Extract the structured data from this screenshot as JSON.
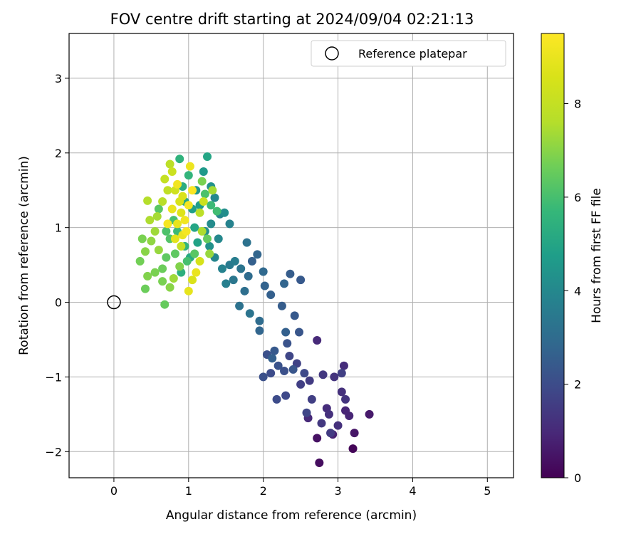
{
  "chart_data": {
    "type": "scatter",
    "title": "FOV centre drift starting at 2024/09/04 02:21:13",
    "xlabel": "Angular distance from reference (arcmin)",
    "ylabel": "Rotation from reference (arcmin)",
    "xlim": [
      -0.6,
      5.35
    ],
    "ylim": [
      -2.35,
      3.6
    ],
    "xticks": [
      "0",
      "1",
      "2",
      "3",
      "4",
      "5"
    ],
    "yticks": [
      "−2",
      "−1",
      "0",
      "1",
      "2",
      "3"
    ],
    "grid": true,
    "legend": {
      "position": "top-right",
      "entries": [
        "Reference platepar"
      ]
    },
    "reference_point": {
      "x": 0,
      "y": 0
    },
    "colorbar": {
      "label": "Hours from first FF file",
      "range": [
        0,
        9.5
      ],
      "ticks": [
        "0",
        "2",
        "4",
        "6",
        "8"
      ],
      "colormap": "viridis"
    },
    "series": [
      {
        "name": "Reference platepar",
        "points": [
          [
            0,
            0
          ]
        ]
      }
    ],
    "points": [
      [
        3.2,
        -1.96,
        0.1
      ],
      [
        2.75,
        -2.15,
        0.3
      ],
      [
        3.22,
        -1.75,
        0.5
      ],
      [
        2.72,
        -1.82,
        0.4
      ],
      [
        3.42,
        -1.5,
        0.6
      ],
      [
        2.93,
        -1.77,
        0.8
      ],
      [
        3.15,
        -1.52,
        0.9
      ],
      [
        2.6,
        -1.55,
        1.0
      ],
      [
        2.85,
        -1.42,
        1.1
      ],
      [
        3.0,
        -1.65,
        1.2
      ],
      [
        3.1,
        -1.3,
        1.3
      ],
      [
        2.78,
        -1.62,
        1.4
      ],
      [
        2.9,
        -1.75,
        1.5
      ],
      [
        3.05,
        -1.2,
        1.2
      ],
      [
        2.72,
        -0.51,
        1.0
      ],
      [
        3.08,
        -0.85,
        1.1
      ],
      [
        2.95,
        -1.0,
        1.3
      ],
      [
        2.8,
        -0.97,
        1.4
      ],
      [
        2.62,
        -1.05,
        1.5
      ],
      [
        2.5,
        -1.1,
        1.6
      ],
      [
        2.45,
        -0.82,
        1.7
      ],
      [
        2.35,
        -0.72,
        1.8
      ],
      [
        2.3,
        -1.25,
        1.9
      ],
      [
        2.18,
        -1.3,
        2.0
      ],
      [
        2.1,
        -0.95,
        2.0
      ],
      [
        2.05,
        -0.7,
        2.1
      ],
      [
        2.2,
        -0.85,
        2.2
      ],
      [
        2.4,
        -0.9,
        2.3
      ],
      [
        2.0,
        -1.0,
        2.1
      ],
      [
        2.15,
        -0.65,
        2.4
      ],
      [
        2.32,
        -0.55,
        2.2
      ],
      [
        2.48,
        -0.4,
        2.3
      ],
      [
        2.42,
        -0.18,
        2.4
      ],
      [
        2.25,
        -0.05,
        2.5
      ],
      [
        2.1,
        0.1,
        2.6
      ],
      [
        2.02,
        0.22,
        2.7
      ],
      [
        2.28,
        0.25,
        2.8
      ],
      [
        2.36,
        0.38,
        2.5
      ],
      [
        2.5,
        0.3,
        2.4
      ],
      [
        1.85,
        0.55,
        2.6
      ],
      [
        1.92,
        0.64,
        2.8
      ],
      [
        2.0,
        0.41,
        2.9
      ],
      [
        1.8,
        0.35,
        3.0
      ],
      [
        1.75,
        0.15,
        3.1
      ],
      [
        1.68,
        -0.05,
        3.2
      ],
      [
        1.82,
        -0.15,
        3.3
      ],
      [
        1.95,
        -0.25,
        3.0
      ],
      [
        1.6,
        0.3,
        3.4
      ],
      [
        1.55,
        0.5,
        3.5
      ],
      [
        1.7,
        0.45,
        3.3
      ],
      [
        1.78,
        0.8,
        3.2
      ],
      [
        1.62,
        0.55,
        3.6
      ],
      [
        1.5,
        0.25,
        3.7
      ],
      [
        1.45,
        0.45,
        3.8
      ],
      [
        1.35,
        0.6,
        3.9
      ],
      [
        1.4,
        0.85,
        4.0
      ],
      [
        1.55,
        1.05,
        3.8
      ],
      [
        1.42,
        1.18,
        3.9
      ],
      [
        1.3,
        1.05,
        4.1
      ],
      [
        1.22,
        0.95,
        4.2
      ],
      [
        1.28,
        0.75,
        4.3
      ],
      [
        1.48,
        1.2,
        4.2
      ],
      [
        1.35,
        1.4,
        4.0
      ],
      [
        1.3,
        1.55,
        4.3
      ],
      [
        1.2,
        1.75,
        4.6
      ],
      [
        1.25,
        1.95,
        5.0
      ],
      [
        1.1,
        1.5,
        4.5
      ],
      [
        1.05,
        1.25,
        4.8
      ],
      [
        1.15,
        1.3,
        4.7
      ],
      [
        0.95,
        1.35,
        5.1
      ],
      [
        0.92,
        1.55,
        5.3
      ],
      [
        0.88,
        1.92,
        5.5
      ],
      [
        1.0,
        1.7,
        5.6
      ],
      [
        1.08,
        1.0,
        5.0
      ],
      [
        1.12,
        0.8,
        4.9
      ],
      [
        1.02,
        0.6,
        5.2
      ],
      [
        0.9,
        0.4,
        5.4
      ],
      [
        0.95,
        0.75,
        5.6
      ],
      [
        0.85,
        0.95,
        5.8
      ],
      [
        0.8,
        1.1,
        6.0
      ],
      [
        0.75,
        0.85,
        6.2
      ],
      [
        0.7,
        0.6,
        6.4
      ],
      [
        0.65,
        0.45,
        6.6
      ],
      [
        0.55,
        0.4,
        6.8
      ],
      [
        0.45,
        0.35,
        6.9
      ],
      [
        0.35,
        0.55,
        6.7
      ],
      [
        0.38,
        0.85,
        6.8
      ],
      [
        0.42,
        0.68,
        7.0
      ],
      [
        0.5,
        0.82,
        7.1
      ],
      [
        0.6,
        0.7,
        7.2
      ],
      [
        0.55,
        0.95,
        7.3
      ],
      [
        0.48,
        1.1,
        7.5
      ],
      [
        0.45,
        1.36,
        7.6
      ],
      [
        0.58,
        1.15,
        7.4
      ],
      [
        0.65,
        1.35,
        7.7
      ],
      [
        0.72,
        1.5,
        7.9
      ],
      [
        0.68,
        1.65,
        8.0
      ],
      [
        0.78,
        1.75,
        8.2
      ],
      [
        0.75,
        1.85,
        7.8
      ],
      [
        0.82,
        1.5,
        8.3
      ],
      [
        0.88,
        1.35,
        8.5
      ],
      [
        0.9,
        1.2,
        8.7
      ],
      [
        0.85,
        1.05,
        8.9
      ],
      [
        0.92,
        0.9,
        9.0
      ],
      [
        0.95,
        1.1,
        9.2
      ],
      [
        1.0,
        1.3,
        9.3
      ],
      [
        1.05,
        1.5,
        9.4
      ],
      [
        1.02,
        1.82,
        9.1
      ],
      [
        0.97,
        0.95,
        9.3
      ],
      [
        1.1,
        0.4,
        9.0
      ],
      [
        1.05,
        0.3,
        8.6
      ],
      [
        1.0,
        0.15,
        8.9
      ],
      [
        1.15,
        0.55,
        8.5
      ],
      [
        0.68,
        -0.03,
        6.5
      ],
      [
        0.42,
        0.18,
        6.6
      ],
      [
        0.65,
        0.28,
        6.8
      ],
      [
        0.75,
        0.2,
        7.0
      ],
      [
        0.82,
        0.65,
        6.4
      ],
      [
        0.7,
        0.95,
        6.1
      ],
      [
        0.6,
        1.25,
        6.3
      ],
      [
        1.2,
        1.35,
        8.2
      ],
      [
        1.15,
        1.2,
        7.8
      ],
      [
        1.18,
        0.95,
        7.5
      ],
      [
        1.28,
        0.65,
        7.2
      ],
      [
        1.25,
        0.85,
        6.5
      ],
      [
        1.3,
        1.3,
        5.8
      ],
      [
        1.22,
        1.45,
        6.1
      ],
      [
        1.18,
        1.62,
        6.8
      ],
      [
        1.32,
        1.5,
        7.4
      ],
      [
        1.38,
        1.22,
        5.9
      ],
      [
        0.98,
        0.55,
        6.0
      ],
      [
        1.08,
        0.65,
        6.3
      ],
      [
        0.88,
        0.48,
        6.9
      ],
      [
        0.8,
        0.32,
        7.3
      ],
      [
        0.9,
        0.75,
        8.0
      ],
      [
        0.82,
        0.85,
        8.8
      ],
      [
        0.78,
        1.25,
        9.0
      ],
      [
        0.72,
        1.05,
        9.3
      ],
      [
        0.85,
        1.58,
        9.2
      ],
      [
        0.92,
        1.42,
        8.6
      ],
      [
        2.58,
        -1.48,
        1.8
      ],
      [
        2.65,
        -1.3,
        1.6
      ],
      [
        2.88,
        -1.5,
        1.2
      ],
      [
        3.1,
        -1.45,
        0.9
      ],
      [
        3.05,
        -0.95,
        1.6
      ],
      [
        2.55,
        -0.95,
        1.9
      ],
      [
        2.28,
        -0.92,
        2.1
      ],
      [
        2.12,
        -0.75,
        2.6
      ],
      [
        1.95,
        -0.38,
        2.8
      ],
      [
        2.3,
        -0.4,
        2.6
      ]
    ]
  }
}
